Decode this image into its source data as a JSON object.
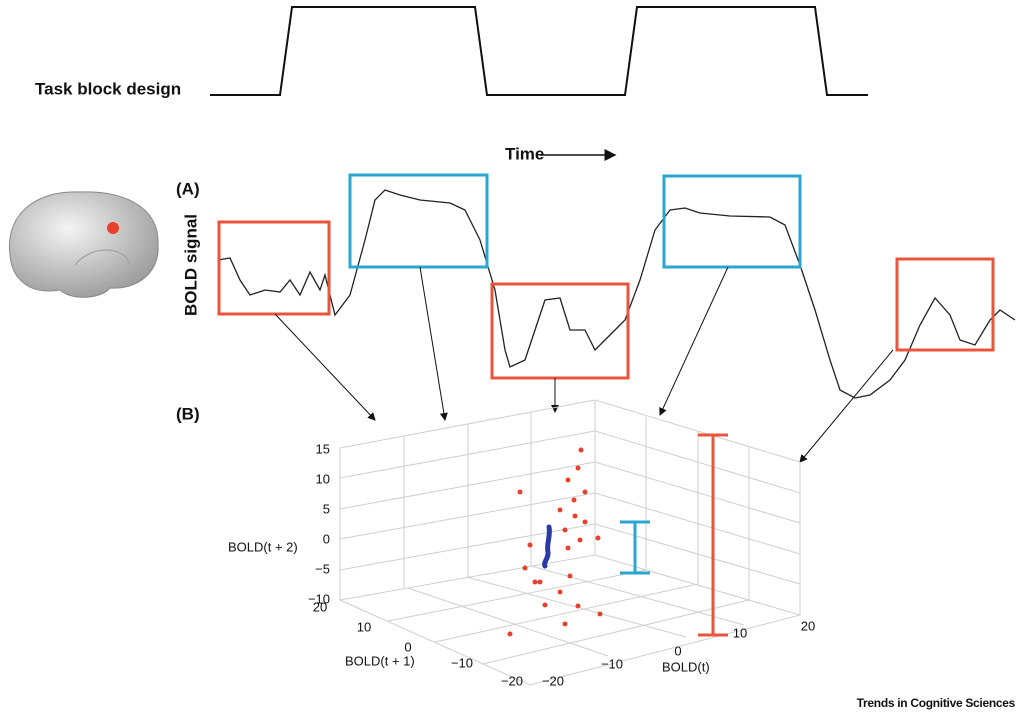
{
  "block_design": {
    "label": "Task block design"
  },
  "time_label": "Time",
  "panel_a": {
    "label": "(A)",
    "y_label": "BOLD signal"
  },
  "panel_b": {
    "label": "(B)",
    "z_axis": {
      "label": "BOLD(t + 2)",
      "ticks": [
        "15",
        "10",
        "5",
        "0",
        "−5",
        "−10"
      ]
    },
    "y_axis": {
      "label": "BOLD(t + 1)",
      "ticks": [
        "20",
        "10",
        "0",
        "−10",
        "−20"
      ]
    },
    "x_axis": {
      "label": "BOLD(t)",
      "ticks": [
        "−20",
        "−10",
        "0",
        "10",
        "20"
      ]
    }
  },
  "credit": "Trends in Cognitive Sciences"
}
